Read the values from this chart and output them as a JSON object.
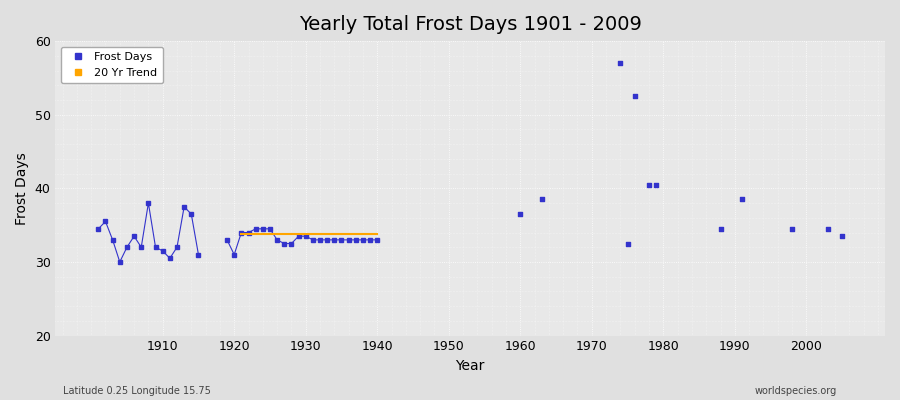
{
  "title": "Yearly Total Frost Days 1901 - 2009",
  "xlabel": "Year",
  "ylabel": "Frost Days",
  "subtitle_left": "Latitude 0.25 Longitude 15.75",
  "subtitle_right": "worldspecies.org",
  "ylim": [
    20,
    60
  ],
  "yticks": [
    20,
    30,
    40,
    50,
    60
  ],
  "xticks": [
    1910,
    1920,
    1930,
    1940,
    1950,
    1960,
    1970,
    1980,
    1990,
    2000
  ],
  "xlim": [
    1895,
    2011
  ],
  "line_color": "#3333cc",
  "trend_color": "#ffa500",
  "bg_color": "#e0e0e0",
  "plot_bg_color": "#e8e8e8",
  "title_fontsize": 14,
  "axis_fontsize": 10,
  "tick_fontsize": 9,
  "frost_segments": [
    {
      "years": [
        1901,
        1902,
        1903,
        1904,
        1905,
        1906,
        1907,
        1908,
        1909,
        1910,
        1911,
        1912,
        1913,
        1914,
        1915
      ],
      "values": [
        34.5,
        35.5,
        33.0,
        30.0,
        32.0,
        33.5,
        32.0,
        38.0,
        32.0,
        31.5,
        30.5,
        32.0,
        37.5,
        36.5,
        31.0
      ]
    },
    {
      "years": [
        1919,
        1920,
        1921,
        1922,
        1923,
        1924,
        1925,
        1926,
        1927,
        1928,
        1929,
        1930,
        1931,
        1932,
        1933,
        1934,
        1935,
        1936,
        1937,
        1938,
        1939,
        1940
      ],
      "values": [
        33.0,
        31.0,
        34.0,
        34.0,
        34.5,
        34.5,
        34.5,
        33.0,
        32.5,
        32.5,
        33.5,
        33.5,
        33.0,
        33.0,
        33.0,
        33.0,
        33.0,
        33.0,
        33.0,
        33.0,
        33.0,
        33.0
      ]
    }
  ],
  "frost_dots": {
    "years": [
      1960,
      1963,
      1974,
      1975,
      1976,
      1978,
      1979,
      1988,
      1991,
      1998,
      2003,
      2005
    ],
    "values": [
      36.5,
      38.5,
      57.0,
      32.5,
      52.5,
      40.5,
      40.5,
      34.5,
      38.5,
      34.5,
      34.5,
      33.5
    ]
  },
  "trend_line": {
    "years": [
      1921,
      1940
    ],
    "values": [
      33.8,
      33.8
    ]
  }
}
